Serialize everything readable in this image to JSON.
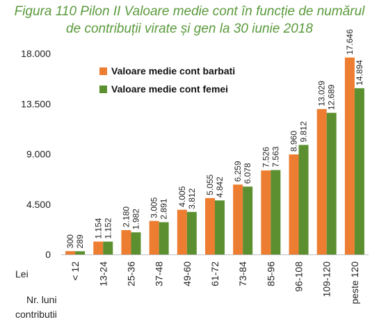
{
  "title_lines": [
    "Figura 110  Pilon II Valoare medie cont în funcție de numărul",
    "de contribuții virate și gen la 30 iunie 2018"
  ],
  "y_unit_label": "Lei",
  "x_axis_label": [
    "Nr. luni",
    "contributii"
  ],
  "colors": {
    "barbati": "#ed7d31",
    "femei": "#5b8f2f",
    "title": "#5a9a3c"
  },
  "chart_data": {
    "type": "bar",
    "title": "Figura 110  Pilon II Valoare medie cont în funcție de numărul de contribuții virate și gen la 30 iunie 2018",
    "categories": [
      "< 12",
      "13-24",
      "25-36",
      "37-48",
      "49-60",
      "61-72",
      "73-84",
      "85-96",
      "96-108",
      "109-120",
      "peste 120"
    ],
    "series": [
      {
        "name": "Valoare medie cont barbati",
        "values": [
          300,
          1154,
          2180,
          3005,
          4005,
          5055,
          6259,
          7526,
          8960,
          13029,
          17646
        ],
        "labels": [
          "300",
          "1.154",
          "2.180",
          "3.005",
          "4.005",
          "5.055",
          "6.259",
          "7.526",
          "8.960",
          "13.029",
          "17.646"
        ]
      },
      {
        "name": "Valoare medie cont femei",
        "values": [
          289,
          1152,
          1982,
          2891,
          3812,
          4842,
          6078,
          7563,
          9812,
          12689,
          14894
        ],
        "labels": [
          "289",
          "1.152",
          "1.982",
          "2.891",
          "3.812",
          "4.842",
          "6.078",
          "7.563",
          "9.812",
          "12.689",
          "14.894"
        ]
      }
    ],
    "ylim": [
      0,
      18000
    ],
    "yticks": [
      0,
      4500,
      9000,
      13500,
      18000
    ],
    "ytick_labels": [
      "0",
      "4.500",
      "9.000",
      "13.500",
      "18.000"
    ],
    "xlabel": "Nr. luni contributii",
    "ylabel": "Lei",
    "legend_position": "top-left",
    "grid": false
  }
}
